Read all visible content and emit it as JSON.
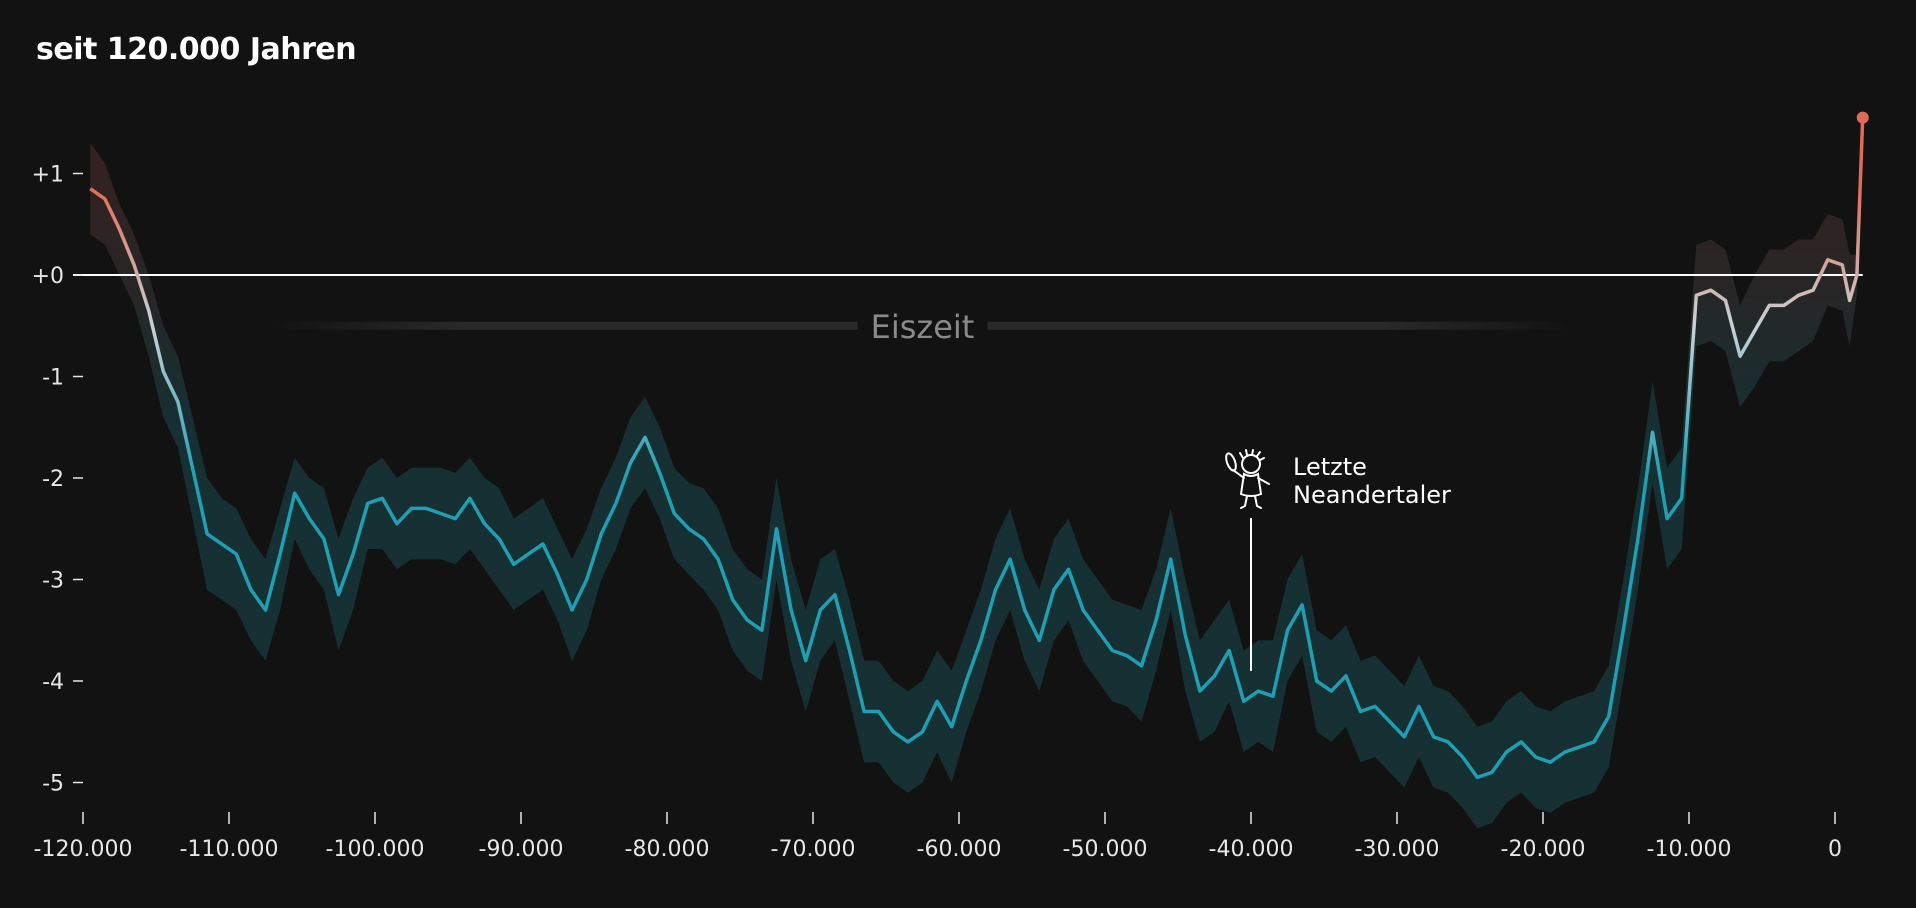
{
  "title": "seit 120.000 Jahren",
  "chart_data": {
    "type": "line",
    "title": "seit 120.000 Jahren",
    "xlabel": "",
    "ylabel": "",
    "xlim": [
      -120000,
      2000
    ],
    "ylim": [
      -5.3,
      1.6
    ],
    "x_ticks": [
      -120000,
      -110000,
      -100000,
      -90000,
      -80000,
      -70000,
      -60000,
      -50000,
      -40000,
      -30000,
      -20000,
      -10000,
      0
    ],
    "x_tick_labels": [
      "-120.000",
      "-110.000",
      "-100.000",
      "-90.000",
      "-80.000",
      "-70.000",
      "-60.000",
      "-50.000",
      "-40.000",
      "-30.000",
      "-20.000",
      "-10.000",
      "0"
    ],
    "y_ticks": [
      1,
      0,
      -1,
      -2,
      -3,
      -4,
      -5
    ],
    "y_tick_labels": [
      "+1",
      "+0",
      "-1",
      "-2",
      "-3",
      "-4",
      "-5"
    ],
    "baseline": 0,
    "grid": false,
    "colors": {
      "cold": "#1e9fb3",
      "neutral": "#c8d2d6",
      "warm": "#e06a55",
      "band_fill": "#163539",
      "baseline": "#ffffff"
    },
    "series": [
      {
        "x": [
          -119500,
          -118500,
          -117500,
          -116500,
          -115500,
          -114500,
          -113500,
          -112500,
          -111500,
          -110500,
          -109500,
          -108500,
          -107500,
          -106500,
          -105500,
          -104500,
          -103500,
          -102500,
          -101500,
          -100500,
          -99500,
          -98500,
          -97500,
          -96500,
          -95500,
          -94500,
          -93500,
          -92500,
          -91500,
          -90500,
          -89500,
          -88500,
          -87500,
          -86500,
          -85500,
          -84500,
          -83500,
          -82500,
          -81500,
          -80500,
          -79500,
          -78500,
          -77500,
          -76500,
          -75500,
          -74500,
          -73500,
          -72500,
          -71500,
          -70500,
          -69500,
          -68500,
          -67500,
          -66500,
          -65500,
          -64500,
          -63500,
          -62500,
          -61500,
          -60500,
          -59500,
          -58500,
          -57500,
          -56500,
          -55500,
          -54500,
          -53500,
          -52500,
          -51500,
          -50500,
          -49500,
          -48500,
          -47500,
          -46500,
          -45500,
          -44500,
          -43500,
          -42500,
          -41500,
          -40500,
          -39500,
          -38500,
          -37500,
          -36500,
          -35500,
          -34500,
          -33500,
          -32500,
          -31500,
          -30500,
          -29500,
          -28500,
          -27500,
          -26500,
          -25500,
          -24500,
          -23500,
          -22500,
          -21500,
          -20500,
          -19500,
          -18500,
          -17500,
          -16500,
          -15500,
          -14500,
          -13500,
          -12500,
          -11500,
          -10500,
          -9500,
          -8500,
          -7500,
          -6500,
          -5500,
          -4500,
          -3500,
          -2500,
          -1500,
          -500,
          500,
          1000,
          1500,
          1900
        ],
        "values": [
          0.85,
          0.75,
          0.45,
          0.1,
          -0.35,
          -0.95,
          -1.25,
          -1.9,
          -2.55,
          -2.65,
          -2.75,
          -3.1,
          -3.3,
          -2.75,
          -2.15,
          -2.4,
          -2.6,
          -3.15,
          -2.75,
          -2.25,
          -2.2,
          -2.45,
          -2.3,
          -2.3,
          -2.35,
          -2.4,
          -2.2,
          -2.45,
          -2.6,
          -2.85,
          -2.75,
          -2.65,
          -2.95,
          -3.3,
          -3.0,
          -2.55,
          -2.25,
          -1.85,
          -1.6,
          -1.95,
          -2.35,
          -2.5,
          -2.6,
          -2.8,
          -3.2,
          -3.4,
          -3.5,
          -2.5,
          -3.3,
          -3.8,
          -3.3,
          -3.15,
          -3.7,
          -4.3,
          -4.3,
          -4.5,
          -4.6,
          -4.5,
          -4.2,
          -4.45,
          -4.0,
          -3.6,
          -3.1,
          -2.8,
          -3.3,
          -3.6,
          -3.1,
          -2.9,
          -3.3,
          -3.5,
          -3.7,
          -3.75,
          -3.85,
          -3.4,
          -2.8,
          -3.55,
          -4.1,
          -3.95,
          -3.7,
          -4.2,
          -4.1,
          -4.15,
          -3.5,
          -3.25,
          -4.0,
          -4.1,
          -3.95,
          -4.3,
          -4.25,
          -4.4,
          -4.55,
          -4.25,
          -4.55,
          -4.6,
          -4.75,
          -4.95,
          -4.9,
          -4.7,
          -4.6,
          -4.75,
          -4.8,
          -4.7,
          -4.65,
          -4.6,
          -4.35,
          -3.5,
          -2.6,
          -1.55,
          -2.4,
          -2.2,
          -0.2,
          -0.15,
          -0.25,
          -0.8,
          -0.55,
          -0.3,
          -0.3,
          -0.2,
          -0.15,
          0.15,
          0.1,
          -0.25,
          0.0,
          1.55
        ]
      }
    ],
    "uncertainty_upper": [
      1.3,
      1.1,
      0.7,
      0.4,
      0.0,
      -0.5,
      -0.8,
      -1.4,
      -2.0,
      -2.2,
      -2.3,
      -2.6,
      -2.8,
      -2.3,
      -1.8,
      -2.0,
      -2.1,
      -2.6,
      -2.2,
      -1.9,
      -1.8,
      -2.0,
      -1.9,
      -1.9,
      -1.9,
      -1.95,
      -1.8,
      -2.0,
      -2.1,
      -2.4,
      -2.3,
      -2.2,
      -2.5,
      -2.8,
      -2.5,
      -2.1,
      -1.8,
      -1.4,
      -1.2,
      -1.5,
      -1.9,
      -2.05,
      -2.1,
      -2.3,
      -2.7,
      -2.9,
      -3.0,
      -2.0,
      -2.8,
      -3.3,
      -2.8,
      -2.7,
      -3.2,
      -3.8,
      -3.8,
      -4.0,
      -4.1,
      -4.0,
      -3.7,
      -3.9,
      -3.5,
      -3.1,
      -2.6,
      -2.3,
      -2.8,
      -3.1,
      -2.6,
      -2.4,
      -2.8,
      -3.0,
      -3.2,
      -3.25,
      -3.3,
      -2.9,
      -2.3,
      -3.0,
      -3.6,
      -3.4,
      -3.2,
      -3.7,
      -3.6,
      -3.6,
      -3.0,
      -2.75,
      -3.5,
      -3.6,
      -3.45,
      -3.8,
      -3.75,
      -3.9,
      -4.05,
      -3.75,
      -4.05,
      -4.1,
      -4.25,
      -4.45,
      -4.4,
      -4.2,
      -4.1,
      -4.25,
      -4.3,
      -4.2,
      -4.15,
      -4.1,
      -3.85,
      -3.0,
      -2.1,
      -1.05,
      -1.9,
      -1.7,
      0.3,
      0.35,
      0.25,
      -0.3,
      0.0,
      0.25,
      0.25,
      0.35,
      0.35,
      0.6,
      0.55,
      0.2,
      0.2,
      1.55
    ],
    "uncertainty_lower": [
      0.4,
      0.3,
      0.0,
      -0.3,
      -0.8,
      -1.4,
      -1.7,
      -2.4,
      -3.1,
      -3.2,
      -3.3,
      -3.6,
      -3.8,
      -3.3,
      -2.6,
      -2.9,
      -3.1,
      -3.7,
      -3.3,
      -2.7,
      -2.7,
      -2.9,
      -2.8,
      -2.8,
      -2.8,
      -2.85,
      -2.7,
      -2.9,
      -3.1,
      -3.3,
      -3.2,
      -3.1,
      -3.4,
      -3.8,
      -3.5,
      -3.0,
      -2.7,
      -2.3,
      -2.1,
      -2.4,
      -2.8,
      -2.95,
      -3.1,
      -3.3,
      -3.7,
      -3.9,
      -4.0,
      -3.0,
      -3.8,
      -4.3,
      -3.8,
      -3.6,
      -4.2,
      -4.8,
      -4.8,
      -5.0,
      -5.1,
      -5.0,
      -4.7,
      -5.0,
      -4.5,
      -4.1,
      -3.6,
      -3.3,
      -3.8,
      -4.1,
      -3.6,
      -3.4,
      -3.8,
      -4.0,
      -4.2,
      -4.25,
      -4.4,
      -3.9,
      -3.3,
      -4.1,
      -4.6,
      -4.5,
      -4.2,
      -4.7,
      -4.6,
      -4.7,
      -4.0,
      -3.75,
      -4.5,
      -4.6,
      -4.45,
      -4.8,
      -4.75,
      -4.9,
      -5.05,
      -4.75,
      -5.05,
      -5.1,
      -5.25,
      -5.45,
      -5.4,
      -5.2,
      -5.1,
      -5.25,
      -5.3,
      -5.2,
      -5.15,
      -5.1,
      -4.85,
      -4.0,
      -3.1,
      -2.05,
      -2.9,
      -2.7,
      -0.7,
      -0.65,
      -0.75,
      -1.3,
      -1.1,
      -0.85,
      -0.85,
      -0.75,
      -0.65,
      -0.3,
      -0.35,
      -0.7,
      -0.2,
      1.55
    ],
    "annotations": [
      {
        "label": "Eiszeit",
        "x_start": -107000,
        "x_end": -18000,
        "y": -0.5
      },
      {
        "label_lines": [
          "Letzte",
          "Neandertaler"
        ],
        "x": -40000,
        "y": -3.9,
        "icon": "neanderthal-figure-icon"
      }
    ]
  }
}
